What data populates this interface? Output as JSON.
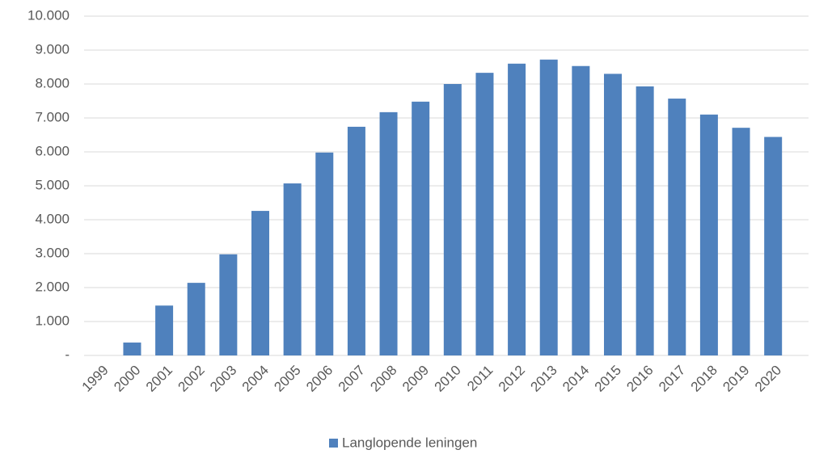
{
  "chart_data": {
    "type": "bar",
    "categories": [
      "1999",
      "2000",
      "2001",
      "2002",
      "2003",
      "2004",
      "2005",
      "2006",
      "2007",
      "2008",
      "2009",
      "2010",
      "2011",
      "2012",
      "2013",
      "2014",
      "2015",
      "2016",
      "2017",
      "2018",
      "2019",
      "2020"
    ],
    "series": [
      {
        "name": "Langlopende leningen",
        "color": "#4f81bd",
        "values": [
          0,
          380,
          1470,
          2140,
          2980,
          4260,
          5070,
          5980,
          6740,
          7170,
          7480,
          8000,
          8330,
          8600,
          8720,
          8530,
          8300,
          7930,
          7570,
          7100,
          6710,
          6440
        ]
      }
    ],
    "ylim": [
      0,
      10000
    ],
    "yticks": [
      {
        "value": 0,
        "label": "-"
      },
      {
        "value": 1000,
        "label": "1.000"
      },
      {
        "value": 2000,
        "label": "2.000"
      },
      {
        "value": 3000,
        "label": "3.000"
      },
      {
        "value": 4000,
        "label": "4.000"
      },
      {
        "value": 5000,
        "label": "5.000"
      },
      {
        "value": 6000,
        "label": "6.000"
      },
      {
        "value": 7000,
        "label": "7.000"
      },
      {
        "value": 8000,
        "label": "8.000"
      },
      {
        "value": 9000,
        "label": "9.000"
      },
      {
        "value": 10000,
        "label": "10.000"
      }
    ],
    "grid": true,
    "legend": "bottom"
  }
}
